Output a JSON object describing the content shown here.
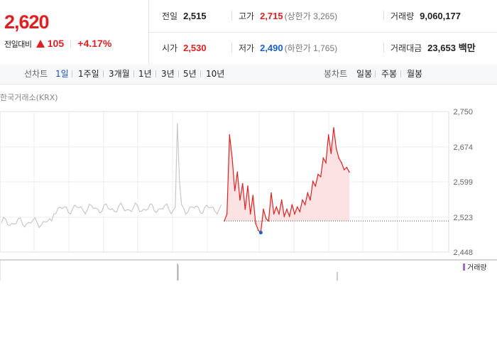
{
  "summary": {
    "price": "2,620",
    "change_label": "전일대비",
    "change": "105",
    "change_pct": "+4.17%",
    "prev_close_label": "전일",
    "prev_close": "2,515",
    "high_label": "고가",
    "high": "2,715",
    "high_note": "(상한가 3,265)",
    "volume_label": "거래량",
    "volume": "9,060,177",
    "open_label": "시가",
    "open": "2,530",
    "low_label": "저가",
    "low": "2,490",
    "low_note": "(하한가 1,765)",
    "amount_label": "거래대금",
    "amount": "23,653",
    "amount_unit": "백만"
  },
  "period_bar": {
    "line_label": "선차트",
    "line_items": [
      "1일",
      "1주일",
      "3개월",
      "1년",
      "3년",
      "5년",
      "10년"
    ],
    "active_item": "1일",
    "candle_label": "봉차트",
    "candle_items": [
      "일봉",
      "주봉",
      "월봉"
    ]
  },
  "chart": {
    "source": "한국거래소(KRX)",
    "volume_legend": "거래량",
    "colors": {
      "up": "#e02020",
      "down": "#1a5fd0",
      "history": "#c8c8c8",
      "fill": "#fde2e4"
    }
  },
  "chart_data": {
    "type": "line",
    "title": "",
    "y_ticks": [
      "2,750",
      "2,674",
      "2,599",
      "2,523",
      "2,448"
    ],
    "ylim": [
      2448,
      2750
    ],
    "prev_close": 2515,
    "grid": true,
    "series": [
      {
        "values": [
          2515,
          2530,
          2700,
          2650,
          2580,
          2620,
          2560,
          2595,
          2540,
          2590,
          2530,
          2570,
          2510,
          2495,
          2490,
          2540,
          2520,
          2515,
          2575,
          2530,
          2545,
          2530,
          2560,
          2525,
          2540,
          2525,
          2550,
          2530,
          2545,
          2535,
          2560,
          2550,
          2575,
          2560,
          2600,
          2590,
          2615,
          2610,
          2650,
          2640,
          2700,
          2660,
          2715,
          2670,
          2650,
          2640,
          2625,
          2630,
          2620
        ]
      }
    ]
  }
}
